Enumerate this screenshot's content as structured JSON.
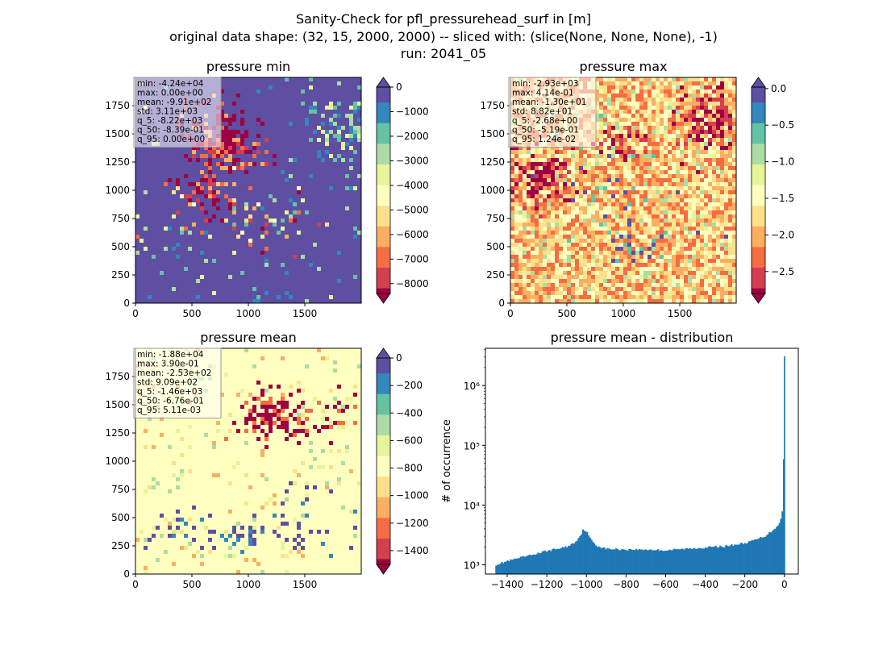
{
  "figure": {
    "title_lines": [
      "Sanity-Check for pfl_pressurehead_surf in [m]",
      "original data shape: (32, 15, 2000, 2000) -- sliced with: (slice(None, None, None), -1)",
      "run: 2041_05"
    ]
  },
  "chart_data": [
    {
      "type": "heatmap",
      "title": "pressure min",
      "xlim": [
        0,
        2000
      ],
      "ylim": [
        0,
        2000
      ],
      "xticks": [
        0,
        500,
        1000,
        1500
      ],
      "yticks": [
        0,
        250,
        500,
        750,
        1000,
        1250,
        1500,
        1750
      ],
      "colormap": "Spectral",
      "colorbar": {
        "min": -8400,
        "max": 0,
        "extend": "both",
        "ticks": [
          0,
          -1000,
          -2000,
          -3000,
          -4000,
          -5000,
          -6000,
          -7000,
          -8000
        ],
        "tick_labels": [
          "0",
          "−1000",
          "−2000",
          "−3000",
          "−4000",
          "−5000",
          "−6000",
          "−7000",
          "−8000"
        ]
      },
      "stats": [
        "min: -4.24e+04",
        "max: 0.00e+00",
        "mean: -9.91e+02",
        "std: 3.11e+03",
        "q_5: -8.22e+03",
        "q_50: -8.39e-01",
        "q_95: 0.00e+00"
      ]
    },
    {
      "type": "heatmap",
      "title": "pressure max",
      "xlim": [
        0,
        2000
      ],
      "ylim": [
        0,
        2000
      ],
      "xticks": [
        0,
        500,
        1000,
        1500
      ],
      "yticks": [
        0,
        250,
        500,
        750,
        1000,
        1250,
        1500,
        1750
      ],
      "colormap": "Spectral",
      "colorbar": {
        "min": -2.8,
        "max": 0.02,
        "extend": "both",
        "ticks": [
          0.0,
          -0.5,
          -1.0,
          -1.5,
          -2.0,
          -2.5
        ],
        "tick_labels": [
          "0.0",
          "−0.5",
          "−1.0",
          "−1.5",
          "−2.0",
          "−2.5"
        ]
      },
      "stats": [
        "min: -2.93e+03",
        "max: 4.14e-01",
        "mean: -1.30e+01",
        "std: 8.82e+01",
        "q_5: -2.68e+00",
        "q_50: -5.19e-01",
        "q_95: 1.24e-02"
      ]
    },
    {
      "type": "heatmap",
      "title": "pressure mean",
      "xlim": [
        0,
        2000
      ],
      "ylim": [
        0,
        2000
      ],
      "xticks": [
        0,
        500,
        1000,
        1500
      ],
      "yticks": [
        0,
        250,
        500,
        750,
        1000,
        1250,
        1500,
        1750
      ],
      "colormap": "Spectral",
      "colorbar": {
        "min": -1500,
        "max": 0,
        "extend": "both",
        "ticks": [
          0,
          -200,
          -400,
          -600,
          -800,
          -1000,
          -1200,
          -1400
        ],
        "tick_labels": [
          "0",
          "−200",
          "−400",
          "−600",
          "−800",
          "−1000",
          "−1200",
          "−1400"
        ]
      },
      "stats": [
        "min: -1.88e+04",
        "max: 3.90e-01",
        "mean: -2.53e+02",
        "std: 9.09e+02",
        "q_5: -1.46e+03",
        "q_50: -6.76e-01",
        "q_95: 5.11e-03"
      ]
    },
    {
      "type": "bar",
      "title": "pressure mean - distribution",
      "ylabel": "# of occurrence",
      "yscale": "log",
      "xlim": [
        -1510,
        70
      ],
      "ylim": [
        700,
        4200000
      ],
      "xticks": [
        -1400,
        -1200,
        -1000,
        -800,
        -600,
        -400,
        -200,
        0
      ],
      "xtick_labels": [
        "−1400",
        "−1200",
        "−1000",
        "−800",
        "−600",
        "−400",
        "−200",
        "0"
      ],
      "yticks": [
        1000,
        10000,
        100000,
        1000000
      ],
      "ytick_labels": [
        "10³",
        "10⁴",
        "10⁵",
        "10⁶"
      ],
      "color": "#1f77b4",
      "bins": {
        "bin_width": 7.3,
        "x": [
          -1460,
          -1400,
          -1300,
          -1200,
          -1100,
          -1060,
          -1030,
          -1015,
          -1000,
          -980,
          -950,
          -900,
          -800,
          -700,
          -600,
          -500,
          -400,
          -300,
          -200,
          -150,
          -100,
          -50,
          -30,
          -20,
          -15,
          -10,
          -5,
          0
        ],
        "values": [
          1000,
          1150,
          1400,
          1700,
          2000,
          2350,
          3100,
          4000,
          3600,
          2700,
          2100,
          1850,
          1800,
          1800,
          1750,
          1850,
          1950,
          2050,
          2300,
          2600,
          3000,
          4000,
          4800,
          5500,
          6500,
          8300,
          13000,
          3100000
        ]
      }
    }
  ]
}
